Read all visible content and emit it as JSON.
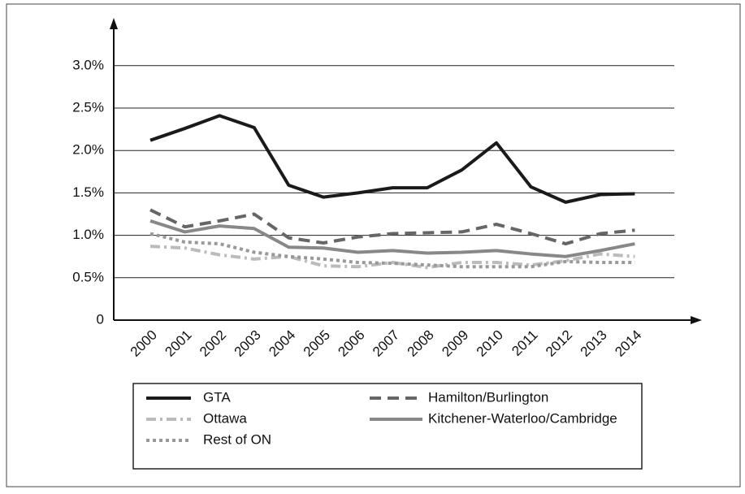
{
  "chart_data": {
    "type": "line",
    "categories": [
      "2000",
      "2001",
      "2002",
      "2003",
      "2004",
      "2005",
      "2006",
      "2007",
      "2008",
      "2009",
      "2010",
      "2011",
      "2012",
      "2013",
      "2014"
    ],
    "series": [
      {
        "name": "GTA",
        "color": "#1a1a1a",
        "style": "solid",
        "values": [
          2.12,
          2.26,
          2.41,
          2.27,
          1.59,
          1.45,
          1.5,
          1.56,
          1.56,
          1.77,
          2.09,
          1.57,
          1.39,
          1.48,
          1.49
        ]
      },
      {
        "name": "Hamilton/Burlington",
        "color": "#666666",
        "style": "dashed",
        "values": [
          1.3,
          1.1,
          1.17,
          1.25,
          0.97,
          0.91,
          0.98,
          1.02,
          1.03,
          1.04,
          1.13,
          1.02,
          0.9,
          1.02,
          1.06
        ]
      },
      {
        "name": "Ottawa",
        "color": "#bbbbbb",
        "style": "dashdot",
        "values": [
          0.87,
          0.85,
          0.77,
          0.72,
          0.75,
          0.64,
          0.63,
          0.68,
          0.62,
          0.68,
          0.68,
          0.65,
          0.7,
          0.78,
          0.75
        ]
      },
      {
        "name": "Kitchener-Waterloo/Cambridge",
        "color": "#888888",
        "style": "solid",
        "values": [
          1.17,
          1.04,
          1.11,
          1.08,
          0.86,
          0.85,
          0.8,
          0.82,
          0.79,
          0.8,
          0.82,
          0.78,
          0.75,
          0.82,
          0.9
        ]
      },
      {
        "name": "Rest of ON",
        "color": "#999999",
        "style": "dotted",
        "values": [
          1.02,
          0.92,
          0.9,
          0.8,
          0.75,
          0.72,
          0.68,
          0.67,
          0.65,
          0.63,
          0.63,
          0.63,
          0.69,
          0.68,
          0.68
        ]
      }
    ],
    "ylim": [
      0,
      3.5
    ],
    "yticks": [
      0,
      {
        "value": 0.5,
        "label": "0.5%"
      },
      {
        "value": 1,
        "label": "1.0%"
      },
      {
        "value": 1.5,
        "label": "1.5%"
      },
      {
        "value": 2,
        "label": "2.0%"
      },
      {
        "value": 2.5,
        "label": "2.5%"
      },
      {
        "value": 3,
        "label": "3.0%"
      }
    ],
    "grid": true
  }
}
